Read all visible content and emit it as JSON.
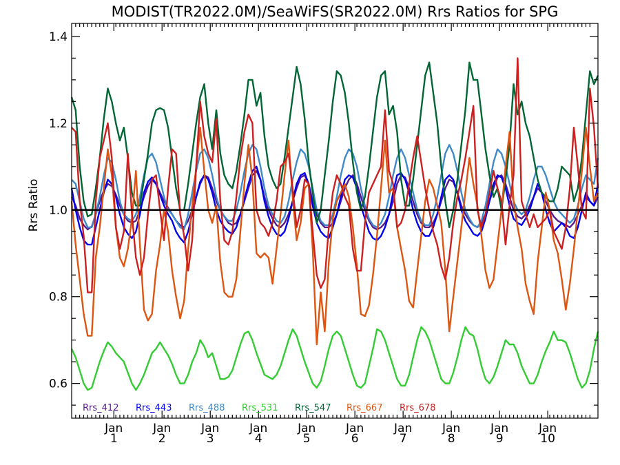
{
  "chart_data": {
    "type": "line",
    "title": "MODIST(TR2022.0M)/SeaWiFS(SR2022.0M)  Rrs Ratios for SPG",
    "xlabel": "",
    "ylabel": "Rrs Ratio",
    "xlim": [
      0,
      131
    ],
    "ylim": [
      0.52,
      1.43
    ],
    "yticks": [
      0.6,
      0.8,
      1.0,
      1.2,
      1.4
    ],
    "ytick_labels": [
      "0.6",
      "0.8",
      "1.0",
      "1.2",
      "1.4"
    ],
    "xticks": [
      {
        "x": 10.5,
        "line1": "Jan",
        "line2": "1"
      },
      {
        "x": 22.5,
        "line1": "Jan",
        "line2": "2"
      },
      {
        "x": 34.5,
        "line1": "Jan",
        "line2": "3"
      },
      {
        "x": 46.5,
        "line1": "Jan",
        "line2": "4"
      },
      {
        "x": 58.5,
        "line1": "Jan",
        "line2": "5"
      },
      {
        "x": 70.5,
        "line1": "Jan",
        "line2": "6"
      },
      {
        "x": 82.5,
        "line1": "Jan",
        "line2": "7"
      },
      {
        "x": 94.5,
        "line1": "Jan",
        "line2": "8"
      },
      {
        "x": 106.5,
        "line1": "Jan",
        "line2": "9"
      },
      {
        "x": 118.5,
        "line1": "Jan",
        "line2": "10"
      }
    ],
    "reference_line": 1.0,
    "legend_placement": "bottom-left, inside plot",
    "grid": false,
    "x_start": 0,
    "x_step": 1,
    "series": [
      {
        "name": "Rrs_412",
        "color": "#551a8b",
        "values": [
          1.03,
          1.01,
          0.98,
          0.965,
          0.955,
          0.962,
          0.99,
          1.02,
          1.045,
          1.06,
          1.055,
          1.035,
          1.01,
          0.99,
          0.975,
          0.97,
          0.975,
          1.0,
          1.03,
          1.055,
          1.07,
          1.06,
          1.04,
          1.02,
          1.005,
          0.99,
          0.975,
          0.965,
          0.96,
          0.975,
          1.0,
          1.03,
          1.06,
          1.08,
          1.075,
          1.05,
          1.02,
          1.0,
          0.985,
          0.97,
          0.965,
          0.97,
          0.99,
          1.02,
          1.05,
          1.08,
          1.09,
          1.07,
          1.03,
          1.0,
          0.98,
          0.965,
          0.96,
          0.97,
          0.99,
          1.02,
          1.05,
          1.075,
          1.08,
          1.06,
          1.02,
          0.99,
          0.97,
          0.96,
          0.96,
          0.97,
          0.99,
          1.02,
          1.05,
          1.07,
          1.08,
          1.06,
          1.03,
          1.0,
          0.975,
          0.96,
          0.955,
          0.96,
          0.97,
          0.99,
          1.02,
          1.06,
          1.08,
          1.075,
          1.05,
          1.02,
          0.99,
          0.97,
          0.96,
          0.96,
          0.97,
          0.99,
          1.02,
          1.05,
          1.07,
          1.065,
          1.04,
          1.01,
          0.99,
          0.975,
          0.965,
          0.96,
          0.97,
          0.99,
          1.02,
          1.05,
          1.075,
          1.08,
          1.06,
          1.03,
          1.0,
          0.985,
          0.98,
          0.99,
          1.01,
          1.03,
          1.05,
          1.04,
          1.02,
          1.0,
          0.985,
          0.975,
          0.97,
          0.965,
          0.96,
          0.97,
          0.99,
          1.01,
          1.03,
          1.02,
          1.01,
          1.03
        ]
      },
      {
        "name": "Rrs_443",
        "color": "#0000ee",
        "values": [
          1.05,
          1.0,
          0.96,
          0.93,
          0.92,
          0.92,
          0.96,
          1.0,
          1.04,
          1.07,
          1.06,
          1.03,
          0.99,
          0.96,
          0.945,
          0.935,
          0.95,
          0.99,
          1.04,
          1.065,
          1.075,
          1.06,
          1.035,
          1.01,
          0.99,
          0.975,
          0.95,
          0.935,
          0.925,
          0.95,
          0.99,
          1.03,
          1.065,
          1.08,
          1.07,
          1.04,
          1.0,
          0.975,
          0.96,
          0.95,
          0.945,
          0.96,
          0.99,
          1.025,
          1.06,
          1.09,
          1.1,
          1.07,
          1.02,
          0.985,
          0.96,
          0.945,
          0.94,
          0.95,
          0.98,
          1.02,
          1.06,
          1.08,
          1.085,
          1.06,
          1.01,
          0.97,
          0.95,
          0.94,
          0.935,
          0.96,
          0.99,
          1.03,
          1.07,
          1.08,
          1.075,
          1.05,
          1.01,
          0.98,
          0.95,
          0.935,
          0.93,
          0.94,
          0.96,
          0.99,
          1.04,
          1.08,
          1.085,
          1.07,
          1.04,
          1.0,
          0.97,
          0.95,
          0.94,
          0.94,
          0.96,
          0.99,
          1.03,
          1.07,
          1.08,
          1.07,
          1.04,
          1.0,
          0.975,
          0.96,
          0.945,
          0.94,
          0.95,
          0.98,
          1.02,
          1.06,
          1.08,
          1.075,
          1.05,
          1.01,
          0.98,
          0.97,
          0.965,
          0.98,
          1.0,
          1.03,
          1.06,
          1.04,
          1.0,
          0.97,
          0.95,
          0.96,
          0.97,
          0.96,
          0.94,
          0.935,
          0.96,
          1.0,
          1.04,
          1.02,
          1.01,
          1.06
        ]
      },
      {
        "name": "Rrs_488",
        "color": "#3d89c9",
        "values": [
          1.07,
          1.06,
          1.02,
          0.98,
          0.96,
          0.96,
          0.99,
          1.03,
          1.08,
          1.12,
          1.11,
          1.07,
          1.02,
          0.99,
          0.98,
          0.975,
          0.99,
          1.03,
          1.08,
          1.12,
          1.13,
          1.11,
          1.07,
          1.03,
          1.0,
          0.99,
          0.975,
          0.96,
          0.955,
          0.99,
          1.04,
          1.09,
          1.13,
          1.14,
          1.12,
          1.08,
          1.03,
          1.0,
          0.985,
          0.975,
          0.975,
          1.0,
          1.04,
          1.09,
          1.13,
          1.15,
          1.14,
          1.1,
          1.05,
          1.01,
          0.99,
          0.975,
          0.97,
          0.985,
          1.02,
          1.07,
          1.11,
          1.14,
          1.13,
          1.1,
          1.05,
          1.0,
          0.975,
          0.965,
          0.965,
          0.99,
          1.03,
          1.08,
          1.12,
          1.14,
          1.13,
          1.1,
          1.05,
          1.01,
          0.98,
          0.965,
          0.96,
          0.97,
          0.99,
          1.03,
          1.08,
          1.12,
          1.14,
          1.12,
          1.08,
          1.04,
          1.0,
          0.975,
          0.965,
          0.965,
          0.99,
          1.03,
          1.08,
          1.13,
          1.15,
          1.13,
          1.09,
          1.04,
          1.0,
          0.98,
          0.965,
          0.96,
          0.975,
          1.01,
          1.06,
          1.11,
          1.14,
          1.13,
          1.1,
          1.06,
          1.02,
          1.0,
          0.99,
          1.0,
          1.03,
          1.07,
          1.1,
          1.1,
          1.08,
          1.05,
          1.02,
          1.0,
          0.99,
          0.98,
          0.97,
          0.98,
          1.01,
          1.05,
          1.08,
          1.07,
          1.06,
          1.12
        ]
      },
      {
        "name": "Rrs_531",
        "color": "#33cc33",
        "values": [
          0.68,
          0.66,
          0.63,
          0.6,
          0.585,
          0.59,
          0.62,
          0.65,
          0.675,
          0.695,
          0.685,
          0.67,
          0.66,
          0.65,
          0.625,
          0.6,
          0.585,
          0.6,
          0.62,
          0.645,
          0.67,
          0.68,
          0.695,
          0.68,
          0.665,
          0.645,
          0.62,
          0.6,
          0.6,
          0.62,
          0.65,
          0.67,
          0.7,
          0.685,
          0.66,
          0.67,
          0.64,
          0.61,
          0.61,
          0.615,
          0.63,
          0.66,
          0.69,
          0.715,
          0.72,
          0.7,
          0.67,
          0.645,
          0.62,
          0.615,
          0.61,
          0.62,
          0.64,
          0.67,
          0.7,
          0.725,
          0.71,
          0.68,
          0.65,
          0.625,
          0.6,
          0.59,
          0.605,
          0.64,
          0.68,
          0.71,
          0.72,
          0.71,
          0.68,
          0.65,
          0.62,
          0.595,
          0.59,
          0.6,
          0.64,
          0.68,
          0.725,
          0.72,
          0.7,
          0.67,
          0.64,
          0.61,
          0.595,
          0.595,
          0.62,
          0.66,
          0.7,
          0.73,
          0.72,
          0.7,
          0.67,
          0.64,
          0.61,
          0.6,
          0.6,
          0.625,
          0.66,
          0.7,
          0.73,
          0.715,
          0.71,
          0.68,
          0.64,
          0.61,
          0.6,
          0.615,
          0.64,
          0.67,
          0.7,
          0.69,
          0.69,
          0.67,
          0.64,
          0.62,
          0.6,
          0.6,
          0.62,
          0.65,
          0.675,
          0.695,
          0.72,
          0.7,
          0.7,
          0.695,
          0.67,
          0.64,
          0.61,
          0.59,
          0.6,
          0.63,
          0.68,
          0.72
        ]
      },
      {
        "name": "Rrs_547",
        "color": "#006633",
        "values": [
          1.26,
          1.23,
          1.1,
          1.02,
          0.985,
          0.99,
          1.05,
          1.12,
          1.21,
          1.28,
          1.25,
          1.2,
          1.16,
          1.19,
          1.12,
          1.04,
          1.01,
          1.01,
          1.07,
          1.13,
          1.2,
          1.23,
          1.235,
          1.23,
          1.19,
          1.12,
          1.05,
          1.0,
          1.0,
          1.06,
          1.13,
          1.2,
          1.26,
          1.29,
          1.2,
          1.14,
          1.23,
          1.13,
          1.08,
          1.06,
          1.05,
          1.09,
          1.15,
          1.22,
          1.3,
          1.3,
          1.24,
          1.27,
          1.17,
          1.1,
          1.07,
          1.05,
          1.06,
          1.12,
          1.19,
          1.26,
          1.33,
          1.29,
          1.21,
          1.11,
          1.04,
          0.97,
          1.0,
          1.08,
          1.16,
          1.25,
          1.32,
          1.31,
          1.27,
          1.2,
          1.11,
          1.04,
          1.0,
          1.03,
          1.1,
          1.18,
          1.26,
          1.31,
          1.32,
          1.22,
          1.24,
          1.18,
          1.07,
          1.01,
          1.01,
          1.07,
          1.15,
          1.23,
          1.31,
          1.34,
          1.27,
          1.2,
          1.1,
          1.02,
          0.96,
          1.0,
          1.07,
          1.15,
          1.23,
          1.34,
          1.3,
          1.3,
          1.22,
          1.14,
          1.08,
          1.03,
          1.05,
          1.0,
          1.07,
          1.15,
          1.29,
          1.22,
          1.25,
          1.2,
          1.17,
          1.12,
          1.07,
          1.04,
          1.03,
          1.02,
          1.02,
          1.05,
          1.1,
          1.09,
          1.08,
          1.02,
          1.05,
          1.12,
          1.22,
          1.32,
          1.29,
          1.31
        ]
      },
      {
        "name": "Rrs_667",
        "color": "#dd5511",
        "values": [
          1.02,
          0.92,
          0.84,
          0.76,
          0.71,
          0.71,
          0.89,
          0.96,
          1.05,
          1.14,
          1.08,
          0.96,
          0.89,
          0.87,
          0.91,
          0.98,
          1.09,
          0.92,
          0.77,
          0.745,
          0.76,
          0.86,
          0.92,
          1.0,
          0.95,
          0.86,
          0.8,
          0.75,
          0.79,
          0.91,
          1.01,
          1.1,
          1.19,
          1.09,
          1.0,
          0.97,
          1.01,
          0.88,
          0.81,
          0.8,
          0.8,
          0.84,
          0.95,
          1.06,
          1.15,
          1.07,
          0.9,
          0.89,
          0.9,
          0.89,
          0.83,
          0.91,
          0.99,
          1.08,
          1.16,
          1.03,
          0.93,
          0.97,
          1.05,
          1.06,
          0.91,
          0.69,
          0.81,
          0.72,
          0.88,
          0.98,
          1.02,
          1.04,
          1.06,
          1.03,
          0.96,
          0.87,
          0.76,
          0.755,
          0.78,
          0.85,
          0.94,
          1.05,
          1.16,
          1.04,
          1.05,
          0.96,
          0.91,
          0.86,
          0.79,
          0.775,
          0.86,
          0.94,
          1.02,
          1.07,
          1.05,
          1.01,
          0.97,
          0.86,
          0.72,
          0.8,
          0.88,
          0.96,
          1.04,
          1.12,
          1.06,
          1.01,
          0.94,
          0.86,
          0.82,
          0.84,
          0.92,
          1.0,
          1.1,
          1.18,
          1.02,
          0.96,
          0.91,
          0.83,
          0.79,
          0.76,
          0.88,
          0.96,
          1.04,
          1.0,
          0.93,
          0.9,
          0.84,
          0.77,
          0.83,
          0.91,
          1.0,
          1.09,
          1.19,
          1.1,
          1.02,
          1.04
        ]
      },
      {
        "name": "Rrs_678",
        "color": "#cc2020",
        "values": [
          1.19,
          1.18,
          1.02,
          0.94,
          0.81,
          0.81,
          1.02,
          1.12,
          1.16,
          1.2,
          1.12,
          0.96,
          0.91,
          0.95,
          1.13,
          0.99,
          0.89,
          0.85,
          0.89,
          0.99,
          1.07,
          1.08,
          1.0,
          0.93,
          1.05,
          1.14,
          1.13,
          0.99,
          0.94,
          0.86,
          0.93,
          1.1,
          1.25,
          1.17,
          1.13,
          1.11,
          1.21,
          1.02,
          0.93,
          0.92,
          0.95,
          1.03,
          1.12,
          1.18,
          1.22,
          1.2,
          1.0,
          0.97,
          0.96,
          0.94,
          0.97,
          1.02,
          1.1,
          1.11,
          1.13,
          1.05,
          0.96,
          1.0,
          1.07,
          1.06,
          0.95,
          0.85,
          0.82,
          0.84,
          0.96,
          1.04,
          1.08,
          1.06,
          1.03,
          1.01,
          0.91,
          0.86,
          0.86,
          0.97,
          1.04,
          1.06,
          1.08,
          1.1,
          1.23,
          1.09,
          1.06,
          0.96,
          0.97,
          1.0,
          1.06,
          1.12,
          1.17,
          1.11,
          1.05,
          1.0,
          0.95,
          0.92,
          0.87,
          0.84,
          0.89,
          0.97,
          1.03,
          1.07,
          1.12,
          1.18,
          1.24,
          1.0,
          0.96,
          0.99,
          1.04,
          1.09,
          1.05,
          1.02,
          0.92,
          1.01,
          1.08,
          1.35,
          1.02,
          0.99,
          0.96,
          0.99,
          0.96,
          0.97,
          0.98,
          1.0,
          0.95,
          0.93,
          0.91,
          0.96,
          1.05,
          1.19,
          1.1,
          1.0,
          0.98,
          1.28,
          1.19,
          1.05
        ]
      }
    ]
  }
}
